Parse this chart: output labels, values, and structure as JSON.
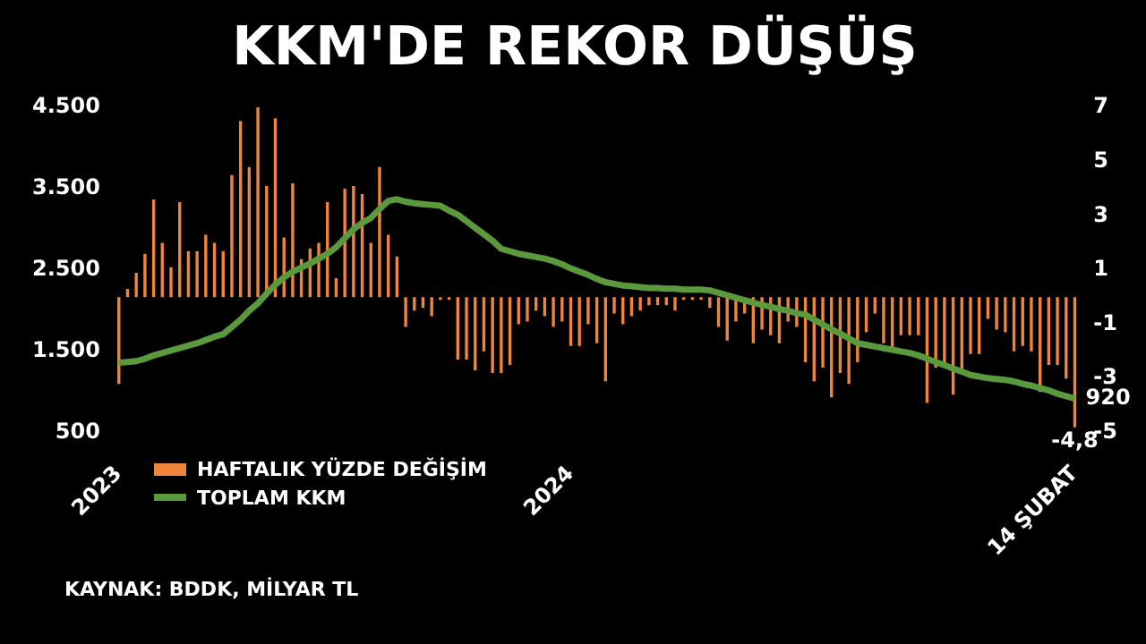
{
  "chart_data": {
    "type": "bar",
    "title": "KKM'DE REKOR DÜŞÜŞ",
    "categories": [
      "2023",
      null,
      null,
      null,
      null,
      null,
      null,
      null,
      null,
      null,
      null,
      null,
      null,
      null,
      null,
      null,
      null,
      null,
      null,
      null,
      null,
      null,
      null,
      null,
      null,
      null,
      null,
      null,
      null,
      null,
      null,
      null,
      null,
      null,
      null,
      null,
      null,
      null,
      null,
      null,
      null,
      null,
      null,
      null,
      null,
      null,
      null,
      null,
      null,
      null,
      null,
      null,
      "2024",
      null,
      null,
      null,
      null,
      null,
      null,
      null,
      null,
      null,
      null,
      null,
      null,
      null,
      null,
      null,
      null,
      null,
      null,
      null,
      null,
      null,
      null,
      null,
      null,
      null,
      null,
      null,
      null,
      null,
      null,
      null,
      null,
      null,
      null,
      null,
      null,
      null,
      null,
      null,
      null,
      null,
      null,
      null,
      null,
      null,
      null,
      null,
      null,
      null,
      null,
      null,
      null,
      null,
      null,
      null,
      null,
      null,
      "14 ŞUBAT"
    ],
    "series": [
      {
        "name": "HAFTALIK YÜZDE DEĞİŞİM",
        "axis": "y2",
        "color": "#f0843c",
        "values": [
          -3.2,
          0.3,
          0.9,
          1.6,
          3.6,
          2.0,
          1.1,
          3.5,
          1.7,
          1.7,
          2.3,
          2.0,
          1.7,
          4.5,
          6.5,
          4.8,
          7.0,
          4.1,
          6.6,
          2.2,
          4.2,
          1.4,
          1.8,
          2.0,
          3.5,
          0.7,
          4.0,
          4.1,
          3.8,
          2.0,
          4.8,
          2.3,
          1.5,
          -1.1,
          -0.5,
          -0.4,
          -0.7,
          -0.1,
          -0.1,
          -2.3,
          -2.3,
          -2.7,
          -2.0,
          -2.8,
          -2.8,
          -2.5,
          -1.0,
          -0.9,
          -0.5,
          -0.7,
          -1.1,
          -0.9,
          -1.8,
          -1.8,
          -1.0,
          -1.7,
          -3.1,
          -0.6,
          -1.0,
          -0.7,
          -0.5,
          -0.3,
          -0.3,
          -0.3,
          -0.5,
          -0.1,
          -0.1,
          -0.1,
          -0.4,
          -1.1,
          -1.6,
          -0.9,
          -0.6,
          -1.7,
          -1.2,
          -1.4,
          -1.7,
          -0.9,
          -1.1,
          -2.4,
          -3.1,
          -2.6,
          -3.7,
          -2.8,
          -3.2,
          -2.4,
          -1.3,
          -0.6,
          -1.7,
          -1.9,
          -1.4,
          -1.4,
          -1.4,
          -3.9,
          -2.6,
          -2.6,
          -3.6,
          -2.8,
          -2.1,
          -2.1,
          -0.8,
          -1.2,
          -1.3,
          -2.0,
          -1.8,
          -2.0,
          -3.5,
          -2.5,
          -2.5,
          -3.0,
          -4.8
        ],
        "value_labels": [
          null,
          null,
          null,
          null,
          null,
          null,
          null,
          null,
          null,
          null,
          null,
          null,
          null,
          null,
          null,
          null,
          null,
          null,
          null,
          null,
          null,
          null,
          null,
          null,
          null,
          null,
          null,
          null,
          null,
          null,
          null,
          null,
          null,
          null,
          null,
          null,
          null,
          null,
          null,
          null,
          null,
          null,
          null,
          null,
          null,
          null,
          null,
          null,
          null,
          null,
          null,
          null,
          null,
          null,
          null,
          null,
          null,
          null,
          null,
          null,
          null,
          null,
          null,
          null,
          null,
          null,
          null,
          null,
          null,
          null,
          null,
          null,
          null,
          null,
          null,
          null,
          null,
          null,
          null,
          null,
          null,
          null,
          null,
          null,
          null,
          null,
          null,
          null,
          null,
          null,
          null,
          null,
          null,
          null,
          null,
          null,
          null,
          null,
          null,
          null,
          null,
          null,
          null,
          null,
          null,
          null,
          null,
          null,
          null,
          null,
          "-4,8"
        ]
      },
      {
        "name": "TOPLAM KKM",
        "type": "line",
        "axis": "y",
        "color": "#5a9a3c",
        "values": [
          1360,
          1370,
          1380,
          1410,
          1450,
          1480,
          1510,
          1540,
          1570,
          1600,
          1640,
          1680,
          1710,
          1800,
          1890,
          2000,
          2090,
          2210,
          2320,
          2410,
          2480,
          2530,
          2580,
          2640,
          2700,
          2780,
          2890,
          3000,
          3080,
          3140,
          3250,
          3350,
          3370,
          3340,
          3320,
          3310,
          3300,
          3290,
          3230,
          3180,
          3100,
          3020,
          2940,
          2860,
          2760,
          2730,
          2700,
          2680,
          2660,
          2640,
          2610,
          2570,
          2520,
          2480,
          2440,
          2390,
          2350,
          2330,
          2310,
          2300,
          2290,
          2280,
          2280,
          2270,
          2270,
          2260,
          2260,
          2260,
          2250,
          2220,
          2190,
          2160,
          2130,
          2100,
          2070,
          2050,
          2020,
          2000,
          1970,
          1950,
          1890,
          1830,
          1770,
          1720,
          1660,
          1600,
          1580,
          1560,
          1540,
          1520,
          1500,
          1480,
          1450,
          1410,
          1370,
          1330,
          1290,
          1250,
          1210,
          1190,
          1170,
          1160,
          1150,
          1130,
          1100,
          1080,
          1050,
          1020,
          980,
          950,
          920
        ],
        "value_labels": [
          null,
          null,
          null,
          null,
          null,
          null,
          null,
          null,
          null,
          null,
          null,
          null,
          null,
          null,
          null,
          null,
          null,
          null,
          null,
          null,
          null,
          null,
          null,
          null,
          null,
          null,
          null,
          null,
          null,
          null,
          null,
          null,
          null,
          null,
          null,
          null,
          null,
          null,
          null,
          null,
          null,
          null,
          null,
          null,
          null,
          null,
          null,
          null,
          null,
          null,
          null,
          null,
          null,
          null,
          null,
          null,
          null,
          null,
          null,
          null,
          null,
          null,
          null,
          null,
          null,
          null,
          null,
          null,
          null,
          null,
          null,
          null,
          null,
          null,
          null,
          null,
          null,
          null,
          null,
          null,
          null,
          null,
          null,
          null,
          null,
          null,
          null,
          null,
          null,
          null,
          null,
          null,
          null,
          null,
          null,
          null,
          null,
          null,
          null,
          null,
          null,
          null,
          null,
          null,
          null,
          null,
          null,
          null,
          null,
          null,
          "920"
        ]
      }
    ],
    "ylim": [
      500,
      4500
    ],
    "yticks": [
      500,
      {
        "value": 1500,
        "label": "1.500"
      },
      {
        "value": 2500,
        "label": "2.500"
      },
      {
        "value": 3500,
        "label": "3.500"
      },
      {
        "value": 4500,
        "label": "4.500"
      }
    ],
    "y2lim": [
      -5,
      7
    ],
    "y2ticks": [
      -5,
      -3,
      -1,
      1,
      3,
      5,
      7
    ],
    "legend": "bottom left",
    "marker": "none",
    "annotations": [
      "KAYNAK: BDDK, MİLYAR TL"
    ]
  }
}
